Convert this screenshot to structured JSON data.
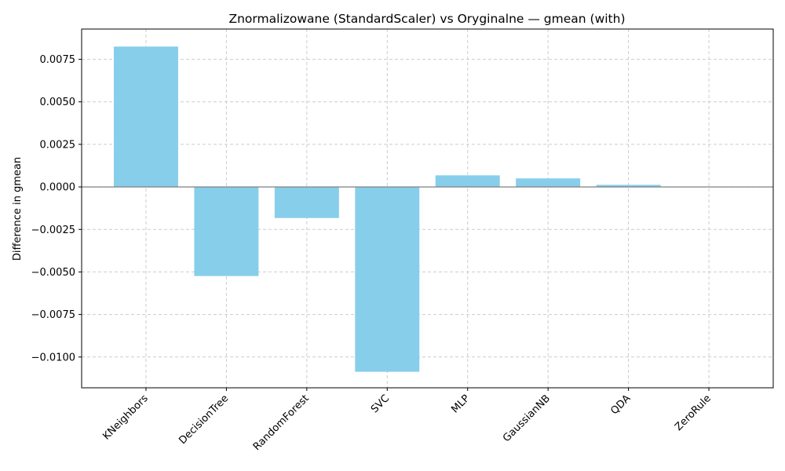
{
  "chart_data": {
    "type": "bar",
    "title": "Znormalizowane (StandardScaler) vs Oryginalne — gmean (with)",
    "xlabel": "",
    "ylabel": "Difference in gmean",
    "categories": [
      "KNeighbors",
      "DecisionTree",
      "RandomForest",
      "SVC",
      "MLP",
      "GaussianNB",
      "QDA",
      "ZeroRule"
    ],
    "values": [
      0.00825,
      -0.00524,
      -0.00183,
      -0.01087,
      0.00068,
      0.0005,
      0.00012,
      0.0
    ],
    "ylim": [
      -0.01181,
      0.00928
    ],
    "yticks": [
      0.0075,
      0.005,
      0.0025,
      0.0,
      -0.0025,
      -0.005,
      -0.0075,
      -0.01
    ],
    "ytick_labels": [
      "0.0075",
      "0.0050",
      "0.0025",
      "0.0000",
      "−0.0025",
      "−0.0050",
      "−0.0075",
      "−0.0100"
    ],
    "grid": true,
    "bar_color": "#87ceeb",
    "zero_line_color": "#808080",
    "grid_color": "#cccccc"
  }
}
